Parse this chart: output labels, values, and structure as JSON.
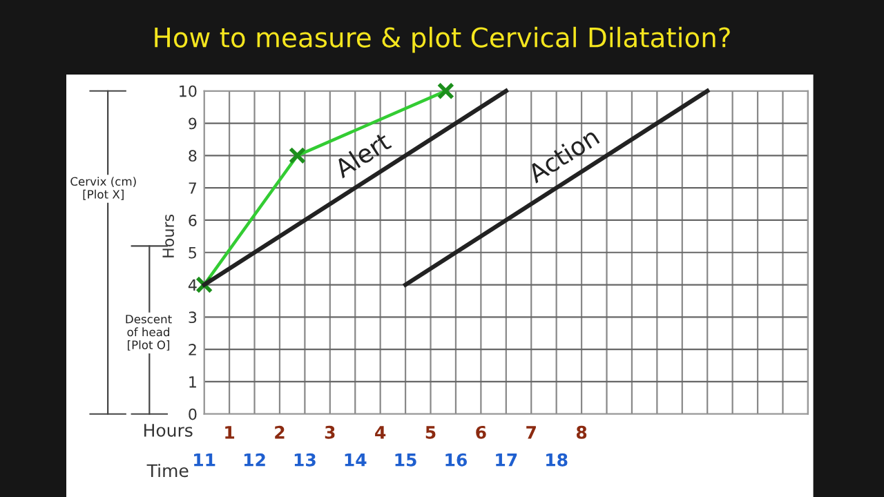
{
  "chart_data": {
    "type": "line",
    "title": "How to measure & plot Cervical Dilatation?",
    "ylabel": "Hours",
    "xlabel": "Hours",
    "x2label": "Time",
    "annotations": [
      "Cervix (cm)\n[Plot X]",
      "Descent\nof head\n[Plot O]"
    ],
    "series": [
      {
        "x": [
          0,
          1.85,
          4.8
        ],
        "values": [
          4,
          8,
          10
        ],
        "color": "#33cc33",
        "marker": "cross"
      },
      {
        "name": "Alert",
        "x": [
          0,
          6
        ],
        "values": [
          4,
          10
        ],
        "color": "#222222",
        "marker": "none"
      },
      {
        "name": "Action",
        "x": [
          4,
          10
        ],
        "values": [
          4,
          10
        ],
        "color": "#222222",
        "marker": "none"
      }
    ],
    "xlim": [
      0,
      12
    ],
    "ylim": [
      0,
      10
    ],
    "xticks": [
      {
        "value": 0.5,
        "label": "1"
      },
      {
        "value": 1.5,
        "label": "2"
      },
      {
        "value": 2.5,
        "label": "3"
      },
      {
        "value": 3.5,
        "label": "4"
      },
      {
        "value": 4.5,
        "label": "5"
      },
      {
        "value": 5.5,
        "label": "6"
      },
      {
        "value": 6.5,
        "label": "7"
      },
      {
        "value": 7.5,
        "label": "8"
      }
    ],
    "x2lim": [
      11,
      23
    ],
    "x2ticks": [
      11,
      12,
      13,
      14,
      15,
      16,
      17,
      18
    ],
    "yticks": [
      0,
      1,
      2,
      3,
      4,
      5,
      6,
      7,
      8,
      9,
      10
    ],
    "grid": true
  }
}
